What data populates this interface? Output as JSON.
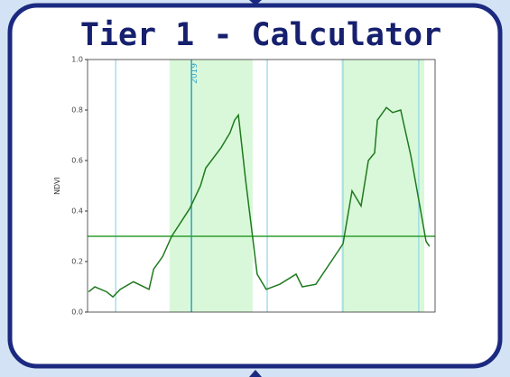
{
  "chart_data": {
    "type": "line",
    "title": "Tier 1 - Calculator",
    "ylabel": "NDVI",
    "xlim": [
      0,
      100
    ],
    "ylim": [
      0,
      1
    ],
    "yticks": [
      {
        "value": 0,
        "label": "0.0"
      },
      0.2,
      0.4,
      0.6,
      0.8,
      {
        "value": 1,
        "label": "1.0"
      }
    ],
    "x": [
      0.3,
      2.1,
      5.5,
      7.3,
      9.4,
      13.2,
      17.7,
      19,
      21.6,
      24.2,
      29.4,
      32.5,
      34,
      38.4,
      41,
      42.3,
      43.4,
      45.5,
      48.8,
      51.4,
      55.3,
      60,
      61.8,
      65.7,
      73.5,
      76.1,
      78.7,
      80.8,
      82.6,
      83.4,
      86,
      87.8,
      90.1,
      93,
      95.6,
      97.4,
      98.4
    ],
    "series": [
      {
        "color": "#1f7a1f",
        "values": [
          0.08,
          0.1,
          0.08,
          0.06,
          0.09,
          0.12,
          0.09,
          0.17,
          0.22,
          0.3,
          0.41,
          0.5,
          0.57,
          0.65,
          0.71,
          0.76,
          0.78,
          0.52,
          0.15,
          0.09,
          0.11,
          0.15,
          0.1,
          0.11,
          0.27,
          0.48,
          0.42,
          0.6,
          0.63,
          0.76,
          0.81,
          0.79,
          0.8,
          0.62,
          0.42,
          0.28,
          0.26
        ]
      }
    ],
    "threshold": 0.3,
    "threshold_color": "#2e9e2e",
    "shaded_regions": [
      [
        23.6,
        47.5
      ],
      [
        73,
        96.9
      ]
    ],
    "shade_color": "#ccf5cc",
    "markers": [
      {
        "x": 8.1,
        "color": "#8fd6e6"
      },
      {
        "x": 29.9,
        "color": "#3aa6c4",
        "label": "2019"
      },
      {
        "x": 51.7,
        "color": "#8fd6e6"
      },
      {
        "x": 73.5,
        "color": "#8fd6e6"
      },
      {
        "x": 95.3,
        "color": "#8fd6e6"
      }
    ]
  }
}
